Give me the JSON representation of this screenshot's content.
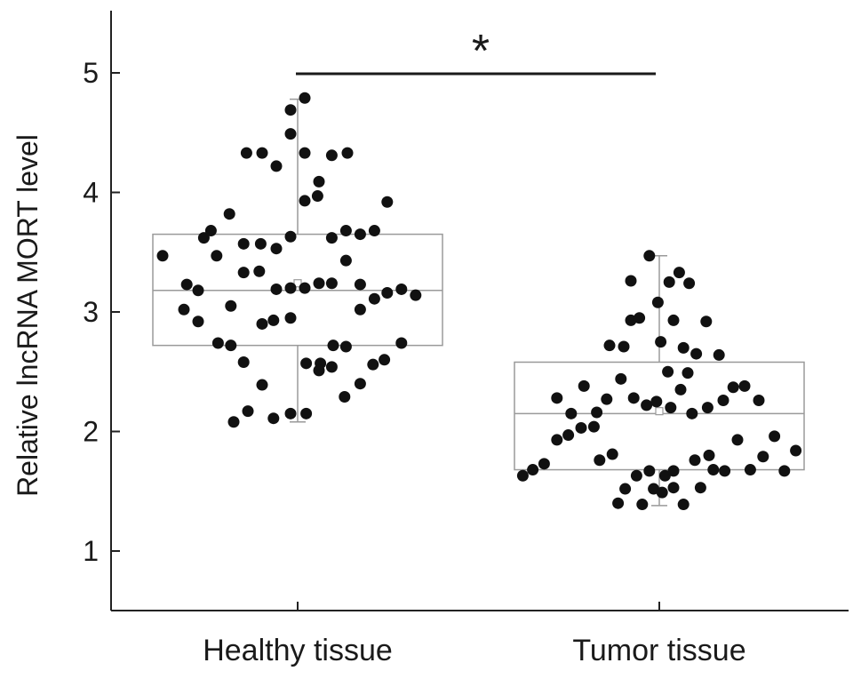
{
  "chart_data": {
    "type": "box",
    "title": "",
    "xlabel": "",
    "ylabel": "Relative lncRNA MORT level",
    "ylim": [
      0.5,
      5.5
    ],
    "y_ticks": [
      1,
      2,
      3,
      4,
      5
    ],
    "y_tick_labels": [
      "1",
      "2",
      "3",
      "4",
      "5"
    ],
    "categories": [
      "Healthy tissue",
      "Tumor tissue"
    ],
    "significance": {
      "between": [
        "Healthy tissue",
        "Tumor tissue"
      ],
      "label": "*"
    },
    "colors": {
      "points": "#111111",
      "box": "#9a9a9a",
      "axes": "#222222"
    },
    "boxes": [
      {
        "category": "Healthy tissue",
        "q1": 2.72,
        "median": 3.18,
        "q3": 3.65,
        "whisker_low": 2.08,
        "whisker_high": 4.78,
        "mean": 3.24
      },
      {
        "category": "Tumor tissue",
        "q1": 1.68,
        "median": 2.15,
        "q3": 2.58,
        "whisker_low": 1.38,
        "whisker_high": 3.47,
        "mean": 2.17
      }
    ],
    "series": [
      {
        "category": "Healthy tissue",
        "points": [
          {
            "offset": -0.95,
            "value": 3.47
          },
          {
            "offset": -0.78,
            "value": 3.23
          },
          {
            "offset": -0.8,
            "value": 3.02
          },
          {
            "offset": -0.7,
            "value": 2.92
          },
          {
            "offset": -0.7,
            "value": 3.18
          },
          {
            "offset": -0.66,
            "value": 3.62
          },
          {
            "offset": -0.61,
            "value": 3.68
          },
          {
            "offset": -0.57,
            "value": 3.47
          },
          {
            "offset": -0.56,
            "value": 2.74
          },
          {
            "offset": -0.48,
            "value": 3.82
          },
          {
            "offset": -0.47,
            "value": 3.05
          },
          {
            "offset": -0.47,
            "value": 2.72
          },
          {
            "offset": -0.38,
            "value": 2.58
          },
          {
            "offset": -0.38,
            "value": 3.57
          },
          {
            "offset": -0.38,
            "value": 3.33
          },
          {
            "offset": -0.36,
            "value": 4.33
          },
          {
            "offset": -0.45,
            "value": 2.08
          },
          {
            "offset": -0.35,
            "value": 2.17
          },
          {
            "offset": -0.25,
            "value": 4.33
          },
          {
            "offset": -0.26,
            "value": 3.57
          },
          {
            "offset": -0.27,
            "value": 3.34
          },
          {
            "offset": -0.25,
            "value": 2.39
          },
          {
            "offset": -0.25,
            "value": 2.9
          },
          {
            "offset": -0.17,
            "value": 2.93
          },
          {
            "offset": -0.15,
            "value": 3.53
          },
          {
            "offset": -0.15,
            "value": 4.22
          },
          {
            "offset": -0.15,
            "value": 3.19
          },
          {
            "offset": -0.17,
            "value": 2.11
          },
          {
            "offset": -0.05,
            "value": 2.95
          },
          {
            "offset": -0.05,
            "value": 4.69
          },
          {
            "offset": -0.05,
            "value": 4.49
          },
          {
            "offset": -0.05,
            "value": 3.2
          },
          {
            "offset": -0.05,
            "value": 3.63
          },
          {
            "offset": -0.05,
            "value": 2.15
          },
          {
            "offset": 0.05,
            "value": 4.79
          },
          {
            "offset": 0.05,
            "value": 4.33
          },
          {
            "offset": 0.05,
            "value": 3.93
          },
          {
            "offset": 0.05,
            "value": 3.2
          },
          {
            "offset": 0.06,
            "value": 2.57
          },
          {
            "offset": 0.06,
            "value": 2.15
          },
          {
            "offset": 0.14,
            "value": 3.97
          },
          {
            "offset": 0.15,
            "value": 4.09
          },
          {
            "offset": 0.15,
            "value": 3.24
          },
          {
            "offset": 0.16,
            "value": 2.57
          },
          {
            "offset": 0.15,
            "value": 2.51
          },
          {
            "offset": 0.24,
            "value": 4.31
          },
          {
            "offset": 0.24,
            "value": 3.62
          },
          {
            "offset": 0.24,
            "value": 3.24
          },
          {
            "offset": 0.25,
            "value": 2.72
          },
          {
            "offset": 0.24,
            "value": 2.54
          },
          {
            "offset": 0.35,
            "value": 4.33
          },
          {
            "offset": 0.34,
            "value": 3.68
          },
          {
            "offset": 0.34,
            "value": 3.43
          },
          {
            "offset": 0.34,
            "value": 2.71
          },
          {
            "offset": 0.33,
            "value": 2.29
          },
          {
            "offset": 0.44,
            "value": 3.65
          },
          {
            "offset": 0.44,
            "value": 3.23
          },
          {
            "offset": 0.44,
            "value": 3.02
          },
          {
            "offset": 0.44,
            "value": 2.4
          },
          {
            "offset": 0.54,
            "value": 3.68
          },
          {
            "offset": 0.54,
            "value": 3.11
          },
          {
            "offset": 0.53,
            "value": 2.56
          },
          {
            "offset": 0.61,
            "value": 2.6
          },
          {
            "offset": 0.63,
            "value": 3.92
          },
          {
            "offset": 0.63,
            "value": 3.16
          },
          {
            "offset": 0.73,
            "value": 3.19
          },
          {
            "offset": 0.73,
            "value": 2.74
          },
          {
            "offset": 0.83,
            "value": 3.14
          }
        ]
      },
      {
        "category": "Tumor tissue",
        "points": [
          {
            "offset": -0.96,
            "value": 1.63
          },
          {
            "offset": -0.89,
            "value": 1.68
          },
          {
            "offset": -0.81,
            "value": 1.73
          },
          {
            "offset": -0.72,
            "value": 2.28
          },
          {
            "offset": -0.72,
            "value": 1.93
          },
          {
            "offset": -0.64,
            "value": 1.97
          },
          {
            "offset": -0.62,
            "value": 2.15
          },
          {
            "offset": -0.55,
            "value": 2.03
          },
          {
            "offset": -0.53,
            "value": 2.38
          },
          {
            "offset": -0.46,
            "value": 2.04
          },
          {
            "offset": -0.44,
            "value": 2.16
          },
          {
            "offset": -0.42,
            "value": 1.76
          },
          {
            "offset": -0.37,
            "value": 2.27
          },
          {
            "offset": -0.35,
            "value": 2.72
          },
          {
            "offset": -0.33,
            "value": 1.81
          },
          {
            "offset": -0.29,
            "value": 1.4
          },
          {
            "offset": -0.27,
            "value": 2.44
          },
          {
            "offset": -0.25,
            "value": 2.71
          },
          {
            "offset": -0.24,
            "value": 1.52
          },
          {
            "offset": -0.18,
            "value": 2.28
          },
          {
            "offset": -0.2,
            "value": 3.26
          },
          {
            "offset": -0.2,
            "value": 2.93
          },
          {
            "offset": -0.16,
            "value": 1.63
          },
          {
            "offset": -0.14,
            "value": 2.95
          },
          {
            "offset": -0.12,
            "value": 1.39
          },
          {
            "offset": -0.07,
            "value": 3.47
          },
          {
            "offset": -0.09,
            "value": 2.22
          },
          {
            "offset": -0.07,
            "value": 1.67
          },
          {
            "offset": -0.04,
            "value": 1.52
          },
          {
            "offset": -0.01,
            "value": 3.08
          },
          {
            "offset": -0.02,
            "value": 2.25
          },
          {
            "offset": 0.01,
            "value": 2.75
          },
          {
            "offset": 0.02,
            "value": 1.49
          },
          {
            "offset": 0.04,
            "value": 1.63
          },
          {
            "offset": 0.06,
            "value": 2.5
          },
          {
            "offset": 0.07,
            "value": 3.25
          },
          {
            "offset": 0.08,
            "value": 2.2
          },
          {
            "offset": 0.1,
            "value": 2.93
          },
          {
            "offset": 0.1,
            "value": 1.67
          },
          {
            "offset": 0.1,
            "value": 1.53
          },
          {
            "offset": 0.14,
            "value": 3.33
          },
          {
            "offset": 0.15,
            "value": 2.35
          },
          {
            "offset": 0.17,
            "value": 2.7
          },
          {
            "offset": 0.17,
            "value": 1.39
          },
          {
            "offset": 0.2,
            "value": 2.49
          },
          {
            "offset": 0.21,
            "value": 3.24
          },
          {
            "offset": 0.23,
            "value": 2.15
          },
          {
            "offset": 0.25,
            "value": 1.76
          },
          {
            "offset": 0.26,
            "value": 2.65
          },
          {
            "offset": 0.29,
            "value": 1.53
          },
          {
            "offset": 0.33,
            "value": 2.92
          },
          {
            "offset": 0.34,
            "value": 2.2
          },
          {
            "offset": 0.35,
            "value": 1.8
          },
          {
            "offset": 0.38,
            "value": 1.68
          },
          {
            "offset": 0.42,
            "value": 2.64
          },
          {
            "offset": 0.45,
            "value": 2.26
          },
          {
            "offset": 0.46,
            "value": 1.67
          },
          {
            "offset": 0.52,
            "value": 2.37
          },
          {
            "offset": 0.55,
            "value": 1.93
          },
          {
            "offset": 0.6,
            "value": 2.38
          },
          {
            "offset": 0.64,
            "value": 1.68
          },
          {
            "offset": 0.7,
            "value": 2.26
          },
          {
            "offset": 0.73,
            "value": 1.79
          },
          {
            "offset": 0.81,
            "value": 1.96
          },
          {
            "offset": 0.88,
            "value": 1.67
          },
          {
            "offset": 0.96,
            "value": 1.84
          }
        ]
      }
    ]
  }
}
